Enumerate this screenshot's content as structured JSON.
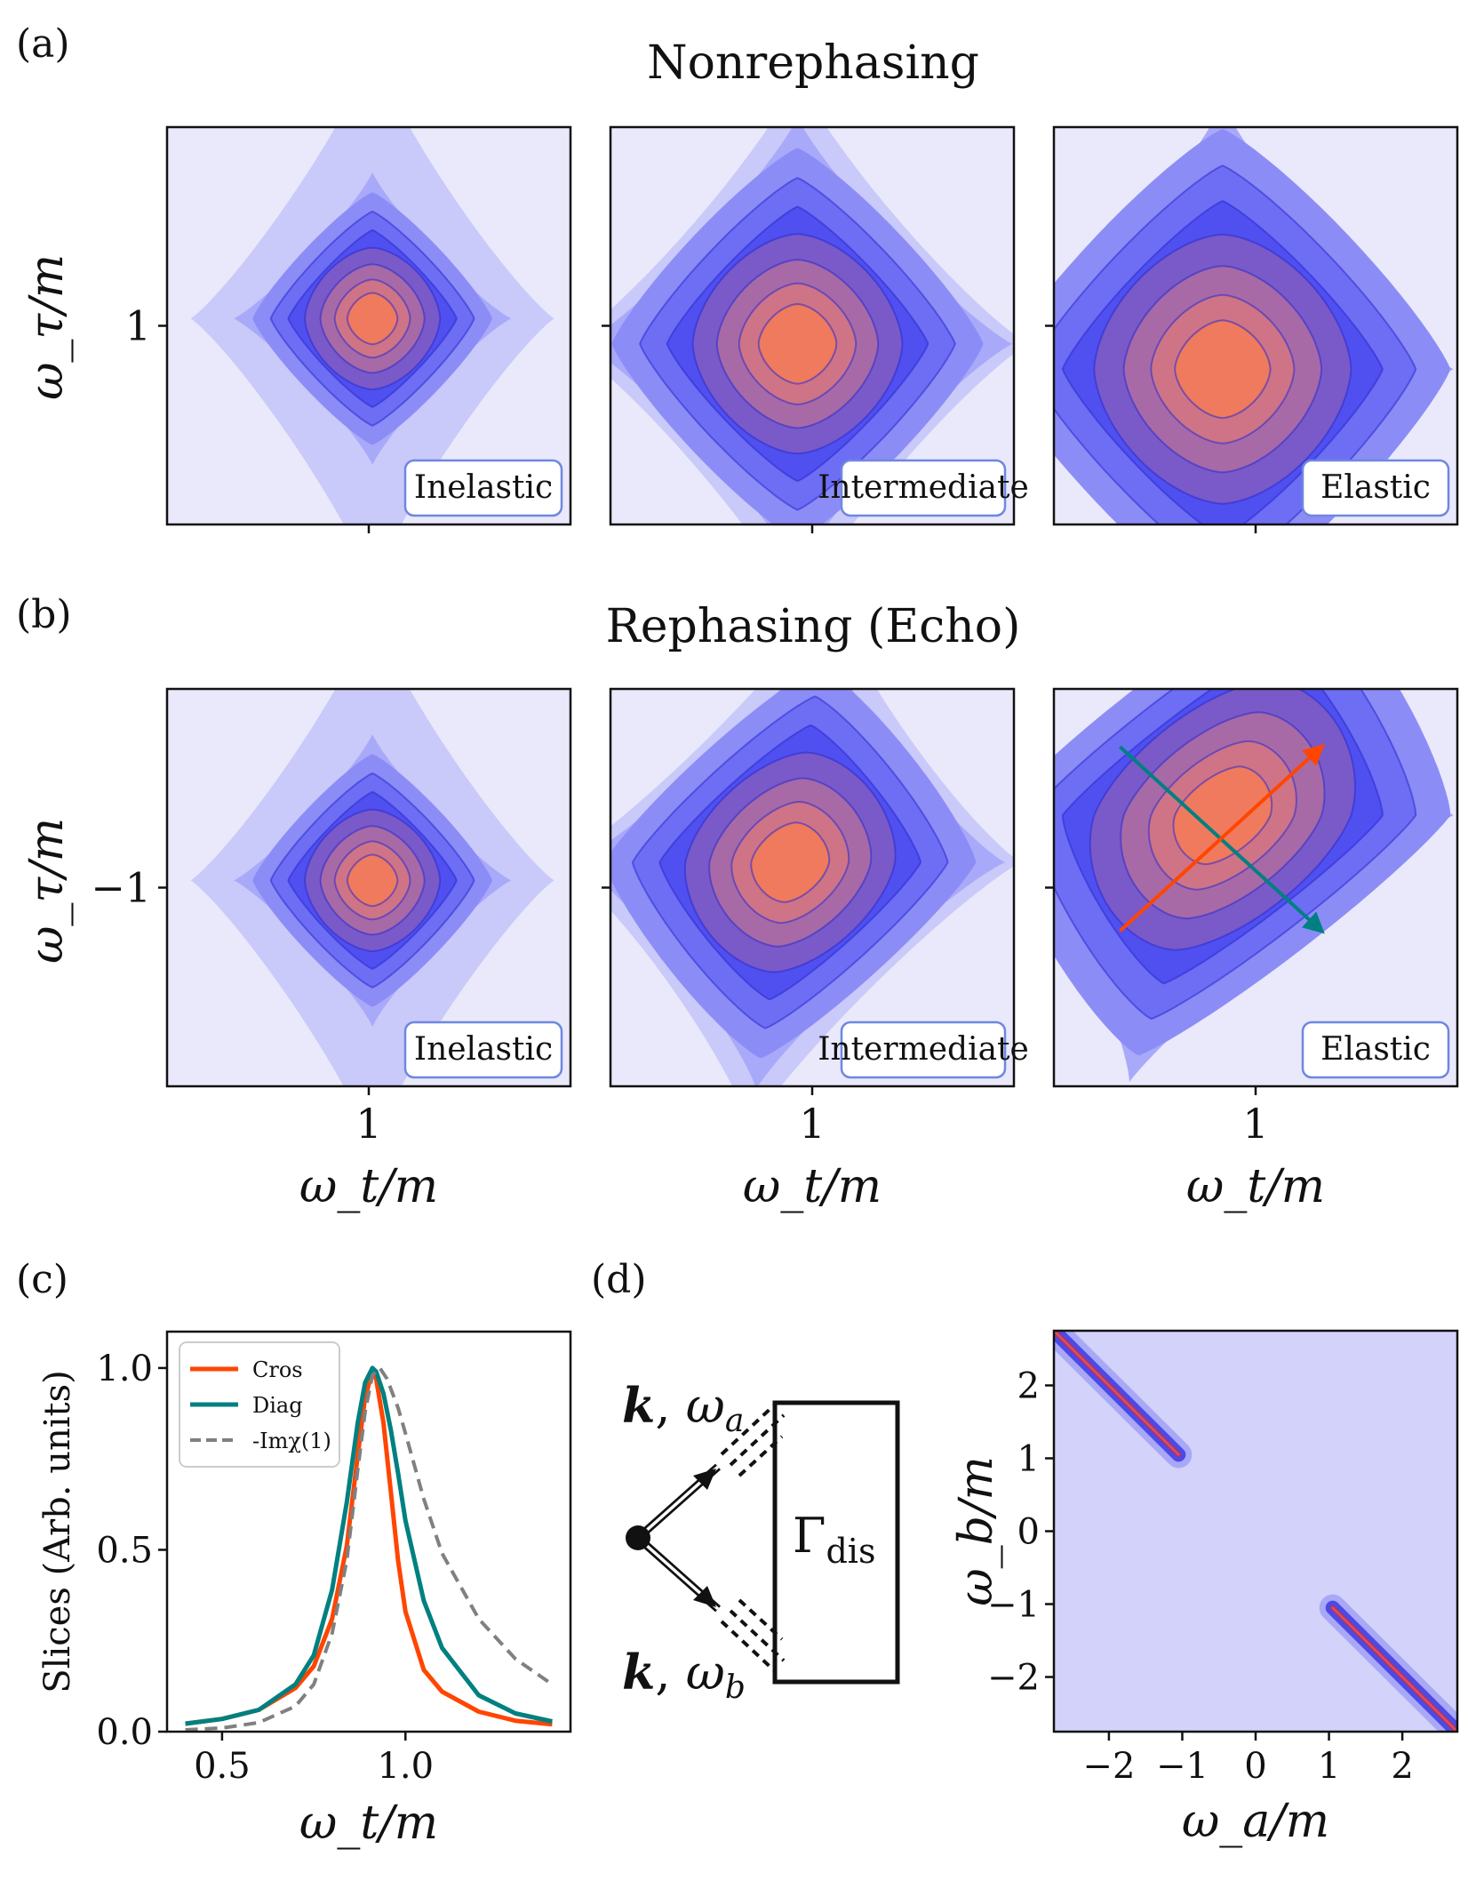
{
  "figure": {
    "panel_labels": {
      "a": "(a)",
      "b": "(b)",
      "c": "(c)",
      "d": "(d)"
    },
    "row_titles": {
      "nonrephasing": "Nonrephasing",
      "rephasing": "Rephasing (Echo)"
    },
    "colors": {
      "background_level": "#e9e9fb",
      "contour_levels": [
        "#e9e9fb",
        "#c9c9fa",
        "#a9a9fa",
        "#8c8cf7",
        "#6e6ef5",
        "#5050f0",
        "#7a5ac8",
        "#a86aa6",
        "#cf7486",
        "#ef7a5e"
      ],
      "contour_line": "#2a2ad0",
      "tag_border": "#6f87e0",
      "cros": "#ff4500",
      "diag": "#008080",
      "imchi": "#808080"
    }
  },
  "chart_data": [
    {
      "type": "heatmap",
      "id": "a1",
      "row": "Nonrephasing",
      "tag": "Inelastic",
      "ylabel": "ω_τ/m",
      "yticks": [
        "1"
      ],
      "xticks": [],
      "xlim": [
        0.45,
        1.55
      ],
      "ylim": [
        0.45,
        1.55
      ],
      "peak": {
        "x": 1.01,
        "y": 1.02
      }
    },
    {
      "type": "heatmap",
      "id": "a2",
      "row": "Nonrephasing",
      "tag": "Intermediate",
      "xlim": [
        0.45,
        1.55
      ],
      "ylim": [
        0.45,
        1.55
      ],
      "peak": {
        "x": 0.96,
        "y": 0.95
      }
    },
    {
      "type": "heatmap",
      "id": "a3",
      "row": "Nonrephasing",
      "tag": "Elastic",
      "xlim": [
        0.45,
        1.55
      ],
      "ylim": [
        0.45,
        1.55
      ],
      "peak": {
        "x": 0.91,
        "y": 0.88
      }
    },
    {
      "type": "heatmap",
      "id": "b1",
      "row": "Rephasing (Echo)",
      "tag": "Inelastic",
      "ylabel": "ω_τ/m",
      "yticks": [
        "−1"
      ],
      "xticks": [
        "1"
      ],
      "xlabel": "ω_t/m",
      "xlim": [
        0.45,
        1.55
      ],
      "ylim": [
        -1.55,
        -0.45
      ],
      "peak": {
        "x": 1.01,
        "y": -0.98
      }
    },
    {
      "type": "heatmap",
      "id": "b2",
      "row": "Rephasing (Echo)",
      "tag": "Intermediate",
      "xticks": [
        "1"
      ],
      "xlabel": "ω_t/m",
      "xlim": [
        0.45,
        1.55
      ],
      "ylim": [
        -1.55,
        -0.45
      ],
      "peak": {
        "x": 0.94,
        "y": -0.93
      }
    },
    {
      "type": "heatmap",
      "id": "b3",
      "row": "Rephasing (Echo)",
      "tag": "Elastic",
      "xticks": [
        "1"
      ],
      "xlabel": "ω_t/m",
      "xlim": [
        0.45,
        1.55
      ],
      "ylim": [
        -1.55,
        -0.45
      ],
      "peak": {
        "x": 0.91,
        "y": -0.8
      },
      "arrows": [
        {
          "name": "diag",
          "color": "#008080",
          "from": [
            0.63,
            -0.61
          ],
          "to": [
            1.18,
            -1.12
          ]
        },
        {
          "name": "cros",
          "color": "#ff4500",
          "from": [
            0.63,
            -1.12
          ],
          "to": [
            1.18,
            -0.61
          ]
        }
      ]
    },
    {
      "type": "line",
      "id": "c",
      "xlabel": "ω_t/m",
      "ylabel": "Slices (Arb. units)",
      "xlim": [
        0.35,
        1.45
      ],
      "ylim": [
        0.0,
        1.1
      ],
      "xticks": [
        0.5,
        1.0
      ],
      "yticks": [
        0.0,
        0.5,
        1.0
      ],
      "xtick_labels": [
        "0.5",
        "1.0"
      ],
      "ytick_labels": [
        "0.0",
        "0.5",
        "1.0"
      ],
      "legend": {
        "position": "upper-left",
        "entries": [
          "Cros",
          "Diag",
          "-Imχ(1)"
        ]
      },
      "series": [
        {
          "name": "Cros",
          "style": "solid",
          "color": "#ff4500",
          "x": [
            0.4,
            0.5,
            0.6,
            0.7,
            0.75,
            0.8,
            0.84,
            0.87,
            0.89,
            0.91,
            0.92,
            0.94,
            0.96,
            0.98,
            1.0,
            1.05,
            1.1,
            1.2,
            1.3,
            1.4
          ],
          "y": [
            0.022,
            0.035,
            0.06,
            0.12,
            0.18,
            0.31,
            0.51,
            0.76,
            0.92,
            0.99,
            0.97,
            0.85,
            0.66,
            0.47,
            0.33,
            0.17,
            0.11,
            0.055,
            0.03,
            0.02
          ]
        },
        {
          "name": "Diag",
          "style": "solid",
          "color": "#008080",
          "x": [
            0.4,
            0.5,
            0.6,
            0.7,
            0.75,
            0.8,
            0.84,
            0.87,
            0.89,
            0.91,
            0.92,
            0.94,
            0.96,
            0.98,
            1.0,
            1.05,
            1.1,
            1.2,
            1.3,
            1.4
          ],
          "y": [
            0.022,
            0.035,
            0.06,
            0.13,
            0.21,
            0.39,
            0.63,
            0.85,
            0.96,
            1.0,
            0.99,
            0.93,
            0.83,
            0.71,
            0.58,
            0.36,
            0.23,
            0.1,
            0.05,
            0.028
          ]
        },
        {
          "name": "-Imχ(1)",
          "style": "dashed",
          "color": "#808080",
          "x": [
            0.4,
            0.5,
            0.6,
            0.7,
            0.75,
            0.8,
            0.84,
            0.87,
            0.89,
            0.91,
            0.93,
            0.95,
            0.98,
            1.0,
            1.05,
            1.1,
            1.2,
            1.3,
            1.4
          ],
          "y": [
            0.005,
            0.01,
            0.025,
            0.07,
            0.13,
            0.27,
            0.47,
            0.72,
            0.88,
            0.98,
            1.0,
            0.97,
            0.89,
            0.82,
            0.64,
            0.49,
            0.31,
            0.2,
            0.13
          ]
        }
      ]
    },
    {
      "type": "heatmap",
      "id": "d_map",
      "xlabel": "ω_a/m",
      "ylabel": "ω_b/m",
      "xlim": [
        -2.75,
        2.75
      ],
      "ylim": [
        -2.75,
        2.75
      ],
      "xticks": [
        -2,
        -1,
        0,
        1,
        2
      ],
      "yticks": [
        -2,
        -1,
        0,
        1,
        2
      ],
      "xtick_labels": [
        "−2",
        "−1",
        "0",
        "1",
        "2"
      ],
      "ytick_labels": [
        "−2",
        "−1",
        "0",
        "1",
        "2"
      ],
      "segments": [
        {
          "from": [
            -2.75,
            2.75
          ],
          "to": [
            -1.05,
            1.05
          ]
        },
        {
          "from": [
            1.05,
            -1.05
          ],
          "to": [
            2.75,
            -2.75
          ]
        }
      ]
    }
  ],
  "diagram": {
    "label_top_k": "k",
    "label_top_omega": "ω",
    "label_top_sub": "a",
    "label_bottom_k": "k",
    "label_bottom_omega": "ω",
    "label_bottom_sub": "b",
    "box_main": "Γ",
    "box_sub": "dis"
  }
}
